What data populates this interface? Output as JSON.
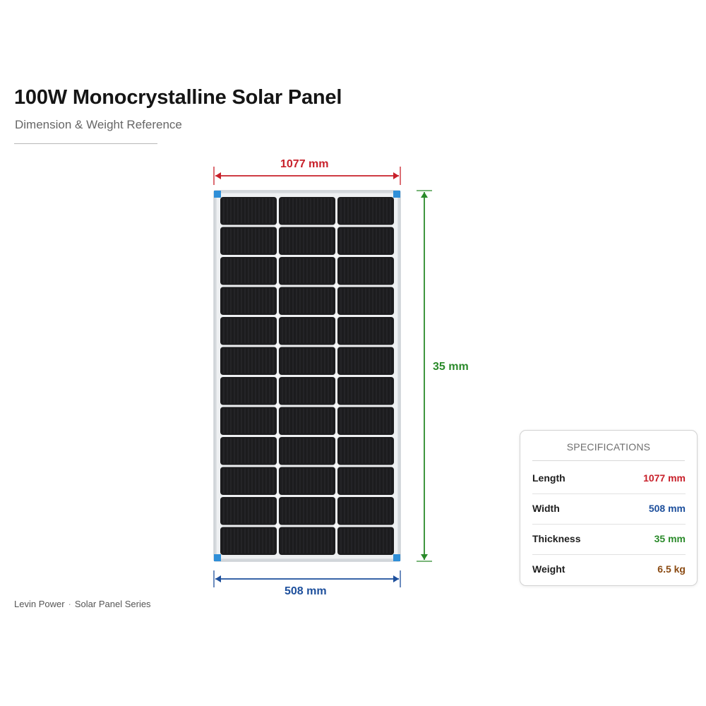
{
  "header": {
    "title": "100W Monocrystalline Solar Panel",
    "subtitle": "Dimension & Weight Reference"
  },
  "dimensions": {
    "top": {
      "text": "1077 mm",
      "color": "#c8202a"
    },
    "right": {
      "text": "35 mm",
      "color": "#2a8a2a"
    },
    "bottom": {
      "text": "508 mm",
      "color": "#1d4f9c"
    }
  },
  "panel": {
    "columns": 3,
    "rows": 12,
    "frame_color": "#d9dde1",
    "corner_color": "#2f8fd8",
    "cell_color": "#1c1c1e"
  },
  "specifications": {
    "heading": "SPECIFICATIONS",
    "rows": [
      {
        "label": "Length",
        "value": "1077 mm",
        "color": "#c8202a"
      },
      {
        "label": "Width",
        "value": "508 mm",
        "color": "#1d4f9c"
      },
      {
        "label": "Thickness",
        "value": "35 mm",
        "color": "#2a8a2a"
      },
      {
        "label": "Weight",
        "value": "6.5 kg",
        "color": "#8a4a12"
      }
    ]
  },
  "footer": {
    "brand": "Levin Power",
    "series": "Solar Panel Series"
  }
}
